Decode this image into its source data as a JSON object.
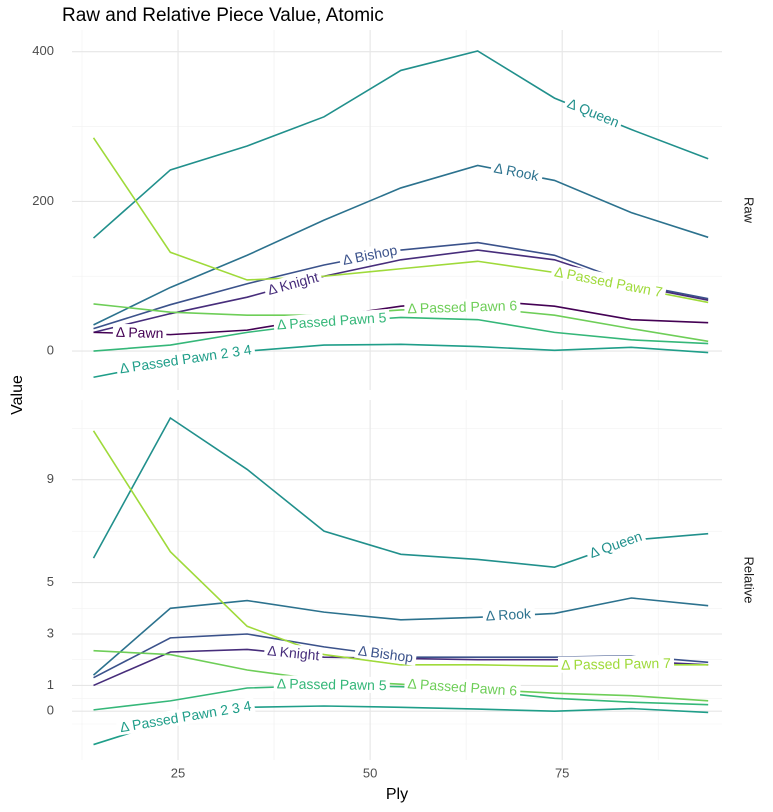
{
  "chart_data": {
    "type": "line",
    "title": "Raw and Relative Piece Value, Atomic",
    "xlabel": "Ply",
    "ylabel": "Value",
    "x": [
      14,
      24,
      34,
      44,
      54,
      64,
      74,
      84,
      94
    ],
    "xlim": [
      11.2,
      95.8
    ],
    "xticks": [
      25,
      50,
      75
    ],
    "grid": true,
    "panels": [
      {
        "name": "Raw",
        "ylim": [
          -52,
          429
        ],
        "yticks": [
          0,
          200,
          400
        ],
        "series": [
          {
            "name": "Δ Queen",
            "color": "#21908c",
            "values": [
              151,
              242,
              274,
              313,
              375,
              401,
              338,
              296,
              257
            ]
          },
          {
            "name": "Δ Rook",
            "color": "#2c728e",
            "values": [
              35,
              85,
              128,
              175,
              218,
              248,
              228,
              185,
              152
            ]
          },
          {
            "name": "Δ Bishop",
            "color": "#3b528b",
            "values": [
              30,
              62,
              90,
              115,
              135,
              145,
              128,
              90,
              70
            ]
          },
          {
            "name": "Δ Knight",
            "color": "#472d7b",
            "values": [
              25,
              50,
              72,
              100,
              122,
              135,
              122,
              88,
              68
            ]
          },
          {
            "name": "Δ Pawn",
            "color": "#440154",
            "values": [
              25,
              22,
              28,
              45,
              60,
              68,
              60,
              42,
              38
            ]
          },
          {
            "name": "Δ Passed Pawn 7",
            "color": "#9fda3a",
            "values": [
              285,
              132,
              95,
              100,
              110,
              120,
              105,
              85,
              65
            ]
          },
          {
            "name": "Δ Passed Pawn 6",
            "color": "#6ece58",
            "values": [
              63,
              52,
              48,
              48,
              55,
              58,
              48,
              30,
              13
            ]
          },
          {
            "name": "Δ Passed Pawn 5",
            "color": "#35b779",
            "values": [
              0,
              8,
              25,
              38,
              45,
              42,
              25,
              15,
              10
            ]
          },
          {
            "name": "Δ Passed Pawn 2 3 4",
            "color": "#1f9e89",
            "values": [
              -35,
              -15,
              0,
              8,
              9,
              6,
              1,
              5,
              -2
            ]
          }
        ]
      },
      {
        "name": "Relative",
        "ylim": [
          -1.9,
          12.1
        ],
        "yticks": [
          0,
          1,
          3,
          5,
          9
        ],
        "series": [
          {
            "name": "Δ Queen",
            "color": "#21908c",
            "values": [
              5.95,
              11.4,
              9.4,
              7.0,
              6.1,
              5.9,
              5.6,
              6.65,
              6.9
            ]
          },
          {
            "name": "Δ Rook",
            "color": "#2c728e",
            "values": [
              1.4,
              4.0,
              4.3,
              3.85,
              3.55,
              3.65,
              3.8,
              4.4,
              4.1
            ]
          },
          {
            "name": "Δ Bishop",
            "color": "#3b528b",
            "values": [
              1.3,
              2.85,
              3.0,
              2.5,
              2.1,
              2.1,
              2.1,
              2.15,
              1.9
            ]
          },
          {
            "name": "Δ Knight",
            "color": "#472d7b",
            "values": [
              1.0,
              2.3,
              2.4,
              2.1,
              2.05,
              2.0,
              2.0,
              1.95,
              1.8
            ]
          },
          {
            "name": "Δ Passed Pawn 7",
            "color": "#9fda3a",
            "values": [
              10.9,
              6.2,
              3.3,
              2.2,
              1.8,
              1.8,
              1.75,
              1.8,
              1.8
            ]
          },
          {
            "name": "Δ Passed Pawn 6",
            "color": "#6ece58",
            "values": [
              2.35,
              2.2,
              1.6,
              1.2,
              1.05,
              0.85,
              0.7,
              0.6,
              0.4
            ]
          },
          {
            "name": "Δ Passed Pawn 5",
            "color": "#35b779",
            "values": [
              0.05,
              0.4,
              0.9,
              1.0,
              0.95,
              0.8,
              0.5,
              0.35,
              0.25
            ]
          },
          {
            "name": "Δ Passed Pawn 2 3 4",
            "color": "#1f9e89",
            "values": [
              -1.3,
              -0.35,
              0.15,
              0.2,
              0.15,
              0.08,
              0,
              0.1,
              -0.05
            ]
          }
        ]
      }
    ]
  }
}
